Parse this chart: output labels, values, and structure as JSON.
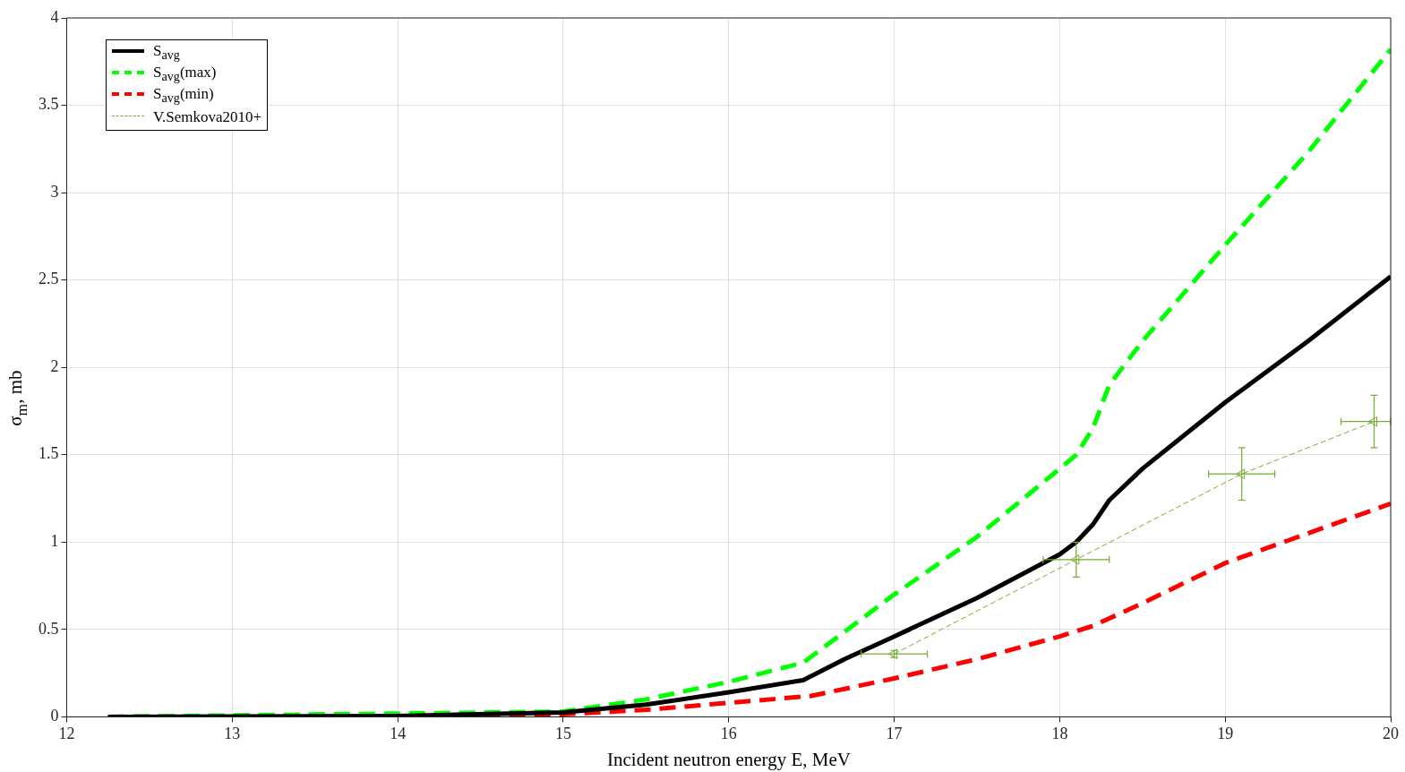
{
  "chart_data": {
    "type": "line",
    "xlabel": "Incident neutron energy E, MeV",
    "ylabel": "σ$_{m}$, mb",
    "xlim": [
      12,
      20
    ],
    "xticks": [
      12,
      13,
      14,
      15,
      16,
      17,
      18,
      19,
      20
    ],
    "ylim": [
      0,
      4
    ],
    "yticks": [
      0,
      0.5,
      1,
      1.5,
      2,
      2.5,
      3,
      3.5,
      4
    ],
    "grid": true,
    "legend": "top left",
    "series": [
      {
        "name": "S$_{avg}$",
        "color": "#000000",
        "line_style": "solid",
        "marker": "none",
        "x": [
          12.25,
          14,
          15,
          15.5,
          16,
          16.45,
          16.7,
          17,
          17.5,
          18,
          18.1,
          18.2,
          18.3,
          18.5,
          19,
          19.5,
          20
        ],
        "values": [
          0,
          0.005,
          0.025,
          0.07,
          0.14,
          0.21,
          0.33,
          0.46,
          0.68,
          0.93,
          1.0,
          1.1,
          1.24,
          1.42,
          1.8,
          2.15,
          2.52
        ]
      },
      {
        "name": "S$_{avg}$(max)",
        "color": "#00ff00",
        "line_style": "dashed",
        "marker": "none",
        "x": [
          12.25,
          15,
          15.5,
          16,
          16.45,
          17,
          17.5,
          18,
          18.1,
          18.2,
          18.3,
          18.5,
          19,
          19.5,
          20
        ],
        "values": [
          0,
          0.03,
          0.1,
          0.2,
          0.31,
          0.7,
          1.03,
          1.42,
          1.5,
          1.65,
          1.9,
          2.15,
          2.7,
          3.23,
          3.82
        ]
      },
      {
        "name": "S$_{avg}$(min)",
        "color": "#ff0000",
        "line_style": "dashed",
        "marker": "none",
        "x": [
          12.25,
          15,
          15.5,
          16,
          16.5,
          17,
          17.5,
          18,
          18.2,
          18.5,
          19,
          19.5,
          20
        ],
        "values": [
          0,
          0.015,
          0.04,
          0.08,
          0.12,
          0.22,
          0.33,
          0.46,
          0.52,
          0.65,
          0.88,
          1.05,
          1.22
        ]
      },
      {
        "name": "V.Semkova2010+",
        "color": "#77ac30",
        "line_style": "dashed",
        "marker": "triangle",
        "x": [
          17,
          18.1,
          19.1,
          19.9
        ],
        "values": [
          0.36,
          0.9,
          1.39,
          1.69
        ],
        "errors": [
          0.02,
          0.1,
          0.15,
          0.15
        ],
        "xerrors": [
          0.2,
          0.2,
          0.2,
          [
            19.7,
            20
          ]
        ]
      }
    ]
  }
}
